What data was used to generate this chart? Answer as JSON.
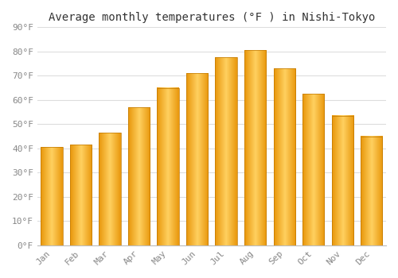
{
  "title": "Average monthly temperatures (°F ) in Nishi-Tokyo",
  "months": [
    "Jan",
    "Feb",
    "Mar",
    "Apr",
    "May",
    "Jun",
    "Jul",
    "Aug",
    "Sep",
    "Oct",
    "Nov",
    "Dec"
  ],
  "values": [
    40.5,
    41.5,
    46.5,
    57.0,
    65.0,
    71.0,
    77.5,
    80.5,
    73.0,
    62.5,
    53.5,
    45.0
  ],
  "bar_color_dark": "#E8960A",
  "bar_color_mid": "#FFBB20",
  "bar_color_light": "#FFD060",
  "background_color": "#FFFFFF",
  "grid_color": "#DDDDDD",
  "ylim": [
    0,
    90
  ],
  "ytick_step": 10,
  "title_fontsize": 10,
  "tick_fontsize": 8,
  "font_family": "monospace"
}
